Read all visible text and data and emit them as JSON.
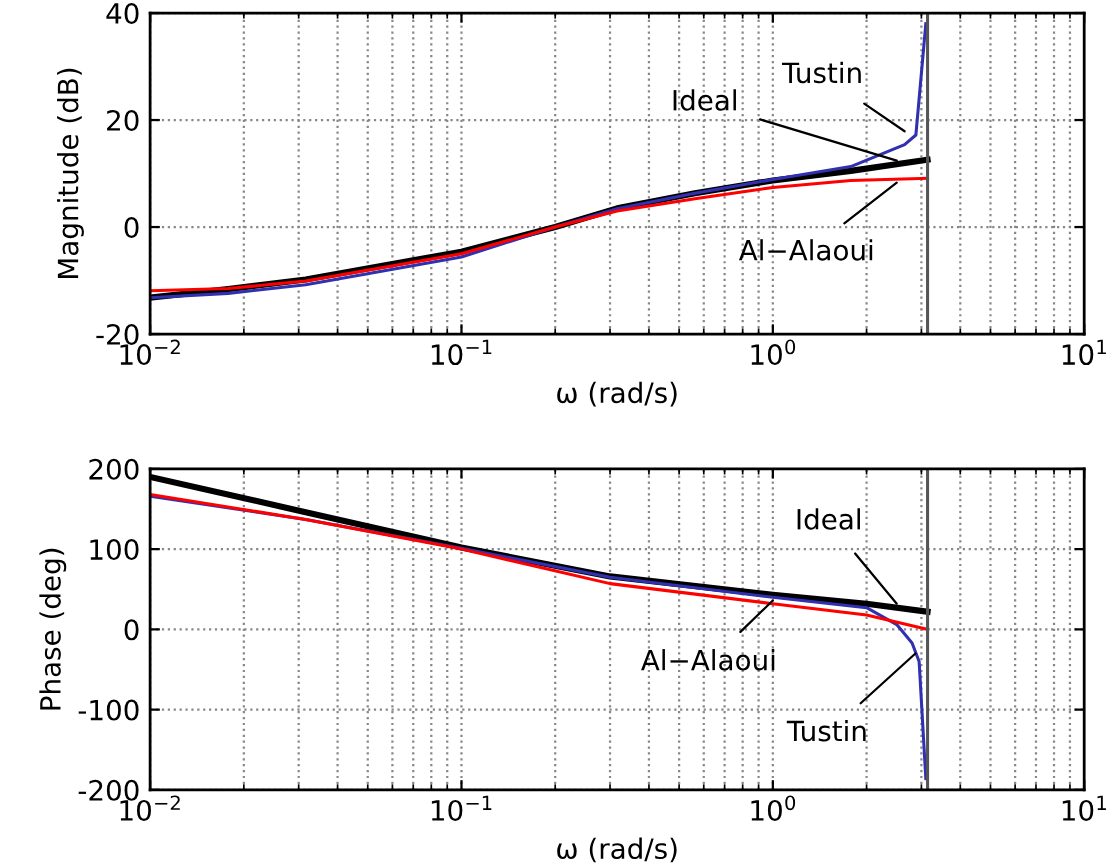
{
  "chart_data": [
    {
      "type": "line",
      "xlabel": "ω (rad/s)",
      "ylabel": "Magnitude (dB)",
      "log": "x",
      "xlim": [
        0.01,
        10
      ],
      "xticks": [
        {
          "value": 0.01,
          "label": "10$^{−2}$"
        },
        {
          "value": 0.1,
          "label": "10$^{−1}$"
        },
        {
          "value": 1,
          "label": "10$^{0}$"
        },
        {
          "value": 10,
          "label": "10$^{1}$"
        }
      ],
      "ylim": [
        -20,
        40
      ],
      "yticks": [
        -20,
        0,
        20,
        40
      ],
      "grid": true,
      "line_style": "solid",
      "marker": "none",
      "series": [
        {
          "color": "#000000",
          "x": [
            0.01,
            0.0178,
            0.0316,
            0.1,
            0.2,
            0.316,
            0.562,
            1,
            1.78,
            3.14
          ],
          "values": [
            -13.2,
            -11.6,
            -9.8,
            -4.6,
            0,
            3.5,
            6.3,
            8.7,
            10.5,
            12.6
          ]
        },
        {
          "color": "#3030b0",
          "x": [
            0.01,
            0.0178,
            0.0316,
            0.1,
            0.2,
            0.316,
            0.562,
            1,
            1.78,
            2.65,
            2.88,
            3.1
          ],
          "values": [
            -13.2,
            -12.4,
            -10.8,
            -5.6,
            0,
            3.4,
            6.3,
            8.9,
            11.3,
            15.4,
            17.2,
            38
          ]
        },
        {
          "color": "#ff0000",
          "x": [
            0.01,
            0.0178,
            0.0316,
            0.1,
            0.2,
            0.316,
            0.562,
            1,
            1.78,
            3.14
          ],
          "values": [
            -11.9,
            -11.5,
            -10.1,
            -5.0,
            0,
            3.0,
            5.3,
            7.4,
            8.7,
            9.1
          ]
        }
      ],
      "ref_lines": [
        {
          "axis": "x",
          "value": 3.14,
          "color": "#555555"
        }
      ],
      "annotations": [
        {
          "text": "Tustin",
          "x": 2.65,
          "y": 17.9
        },
        {
          "text": "Ideal",
          "x": 2.5,
          "y": 12.4
        },
        {
          "text": "Al−Alaoui",
          "x": 2.5,
          "y": 8.3
        }
      ]
    },
    {
      "type": "line",
      "xlabel": "ω (rad/s)",
      "ylabel": "Phase (deg)",
      "log": "x",
      "xlim": [
        0.01,
        10
      ],
      "xticks": [
        {
          "value": 0.01,
          "label": "10$^{−2}$"
        },
        {
          "value": 0.1,
          "label": "10$^{−1}$"
        },
        {
          "value": 1,
          "label": "10$^{0}$"
        },
        {
          "value": 10,
          "label": "10$^{1}$"
        }
      ],
      "ylim": [
        -200,
        200
      ],
      "yticks": [
        -200,
        -100,
        0,
        100,
        200
      ],
      "grid": true,
      "line_style": "solid",
      "marker": "none",
      "series": [
        {
          "color": "#000000",
          "x": [
            0.01,
            0.0316,
            0.1,
            0.3,
            1,
            2,
            3.14
          ],
          "values": [
            190,
            146,
            102,
            66,
            43,
            32,
            22
          ]
        },
        {
          "color": "#3030b0",
          "x": [
            0.01,
            0.0316,
            0.1,
            0.3,
            1,
            2,
            2.5,
            2.8,
            2.95,
            3.1
          ],
          "values": [
            166,
            137,
            101,
            65,
            40,
            27,
            6,
            -17,
            -40,
            -186
          ]
        },
        {
          "color": "#ff0000",
          "x": [
            0.01,
            0.0316,
            0.1,
            0.3,
            1,
            2,
            3.14
          ],
          "values": [
            168,
            137,
            100,
            57,
            32,
            18,
            0
          ]
        }
      ],
      "ref_lines": [
        {
          "axis": "x",
          "value": 3.14,
          "color": "#555555"
        }
      ],
      "annotations": [
        {
          "text": "Ideal",
          "x": 2.5,
          "y": 32
        },
        {
          "text": "Al−Alaoui",
          "x": 1.0,
          "y": 36
        },
        {
          "text": "Tustin",
          "x": 2.87,
          "y": -30
        }
      ]
    }
  ]
}
